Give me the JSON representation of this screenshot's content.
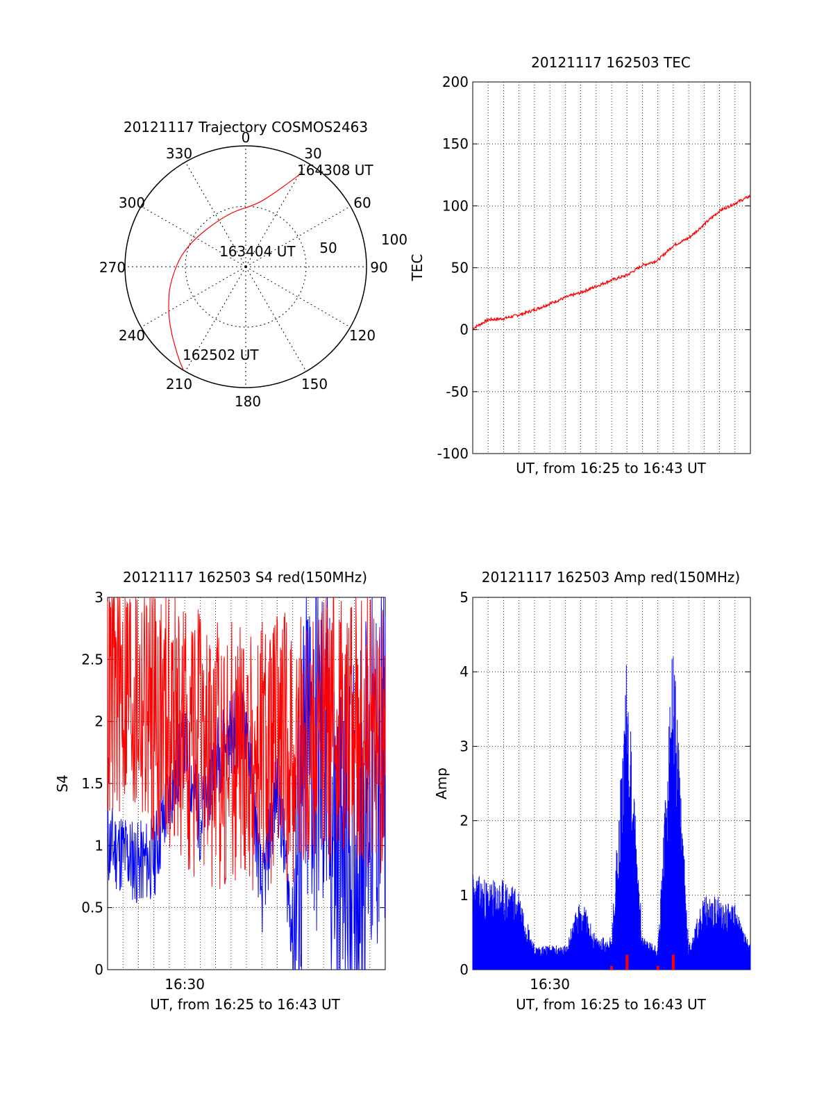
{
  "chart_data": [
    {
      "type": "polar",
      "title": "20121117 Trajectory COSMOS2463",
      "azimuth_labels": [
        "0",
        "30",
        "60",
        "90",
        "120",
        "150",
        "180",
        "210",
        "240",
        "270",
        "300",
        "330"
      ],
      "radial_labels": [
        "50",
        "100"
      ],
      "radial_max": 100,
      "grid": true,
      "trajectory_color": "#ff0000",
      "trajectory": [
        {
          "az": 211,
          "el": 0
        },
        {
          "az": 216,
          "el": 5
        },
        {
          "az": 222,
          "el": 11
        },
        {
          "az": 230,
          "el": 17
        },
        {
          "az": 241,
          "el": 24
        },
        {
          "az": 258,
          "el": 32
        },
        {
          "az": 288,
          "el": 42
        },
        {
          "az": 340,
          "el": 48
        },
        {
          "az": 10,
          "el": 43
        },
        {
          "az": 22,
          "el": 30
        },
        {
          "az": 27,
          "el": 20
        },
        {
          "az": 31,
          "el": 8
        }
      ],
      "annotations": [
        {
          "text": "164308 UT",
          "az": 31,
          "el": 8
        },
        {
          "text": "163404 UT",
          "az": 335,
          "el": 87
        },
        {
          "text": "162502 UT",
          "az": 211,
          "el": 0
        }
      ]
    },
    {
      "type": "line",
      "title": "20121117 162503 TEC",
      "xlabel": "UT, from 16:25 to 16:43 UT",
      "ylabel": "TEC",
      "xlim": [
        "16:25",
        "16:43"
      ],
      "ylim": [
        -100,
        200
      ],
      "yticks": [
        "-100",
        "-50",
        "0",
        "50",
        "100",
        "150",
        "200"
      ],
      "grid": true,
      "series": [
        {
          "color": "#ff0000",
          "x": [
            "16:25",
            "16:26",
            "16:27",
            "16:28",
            "16:29",
            "16:30",
            "16:31",
            "16:32",
            "16:33",
            "16:34",
            "16:35",
            "16:36",
            "16:37",
            "16:38",
            "16:39",
            "16:40",
            "16:41",
            "16:42",
            "16:43"
          ],
          "values": [
            1,
            8,
            9,
            12,
            16,
            21,
            26,
            30,
            35,
            40,
            44,
            52,
            56,
            68,
            74,
            85,
            96,
            102,
            108
          ]
        }
      ]
    },
    {
      "type": "line",
      "title": "20121117 162503 S4 red(150MHz)",
      "xlabel": "UT, from 16:25 to 16:43 UT",
      "ylabel": "S4",
      "xlim": [
        "16:25",
        "16:43"
      ],
      "ylim": [
        0,
        3
      ],
      "yticks": [
        "0",
        "0.5",
        "1",
        "1.5",
        "2",
        "2.5",
        "3"
      ],
      "xticks": [
        "16:30"
      ],
      "grid": true,
      "series": [
        {
          "color": "#0000ff",
          "x": [
            "16:25",
            "16:26",
            "16:27",
            "16:28",
            "16:29",
            "16:30",
            "16:31",
            "16:32",
            "16:33",
            "16:34",
            "16:35",
            "16:36",
            "16:37",
            "16:38",
            "16:39",
            "16:40",
            "16:41",
            "16:42",
            "16:43"
          ],
          "values": [
            1.0,
            0.95,
            0.85,
            0.9,
            1.4,
            1.8,
            1.2,
            1.7,
            1.9,
            2.0,
            0.6,
            1.5,
            0.3,
            1.8,
            1.7,
            0.8,
            0.9,
            1.5,
            1.6
          ]
        },
        {
          "color": "#ff0000",
          "x": [
            "16:25",
            "16:26",
            "16:27",
            "16:28",
            "16:29",
            "16:30",
            "16:31",
            "16:32",
            "16:33",
            "16:34",
            "16:35",
            "16:36",
            "16:37",
            "16:38",
            "16:39",
            "16:40",
            "16:41",
            "16:42",
            "16:43"
          ],
          "values": [
            2.2,
            2.3,
            2.2,
            2.1,
            2.0,
            1.9,
            1.8,
            1.7,
            1.8,
            1.7,
            1.7,
            1.8,
            1.8,
            1.8,
            1.9,
            2.0,
            2.0,
            1.9,
            1.8
          ]
        }
      ]
    },
    {
      "type": "line",
      "title": "20121117 162503 Amp red(150MHz)",
      "xlabel": "UT, from 16:25 to 16:43 UT",
      "ylabel": "Amp",
      "xlim": [
        "16:25",
        "16:43"
      ],
      "ylim": [
        0,
        5
      ],
      "yticks": [
        "0",
        "1",
        "2",
        "3",
        "4",
        "5"
      ],
      "xticks": [
        "16:30"
      ],
      "grid": true,
      "series": [
        {
          "color": "#0000ff",
          "x": [
            "16:25",
            "16:26",
            "16:27",
            "16:28",
            "16:29",
            "16:30",
            "16:31",
            "16:32",
            "16:33",
            "16:34",
            "16:35",
            "16:36",
            "16:37",
            "16:38",
            "16:39",
            "16:40",
            "16:41",
            "16:42",
            "16:43"
          ],
          "values": [
            1.2,
            1.1,
            1.1,
            1.0,
            0.3,
            0.3,
            0.3,
            0.9,
            0.4,
            0.4,
            3.9,
            0.4,
            0.3,
            4.1,
            0.3,
            0.9,
            0.9,
            0.8,
            0.3
          ]
        },
        {
          "color": "#ff0000",
          "x": [
            "16:34",
            "16:35",
            "16:37",
            "16:38"
          ],
          "values": [
            0.05,
            0.2,
            0.05,
            0.2
          ]
        }
      ]
    }
  ]
}
